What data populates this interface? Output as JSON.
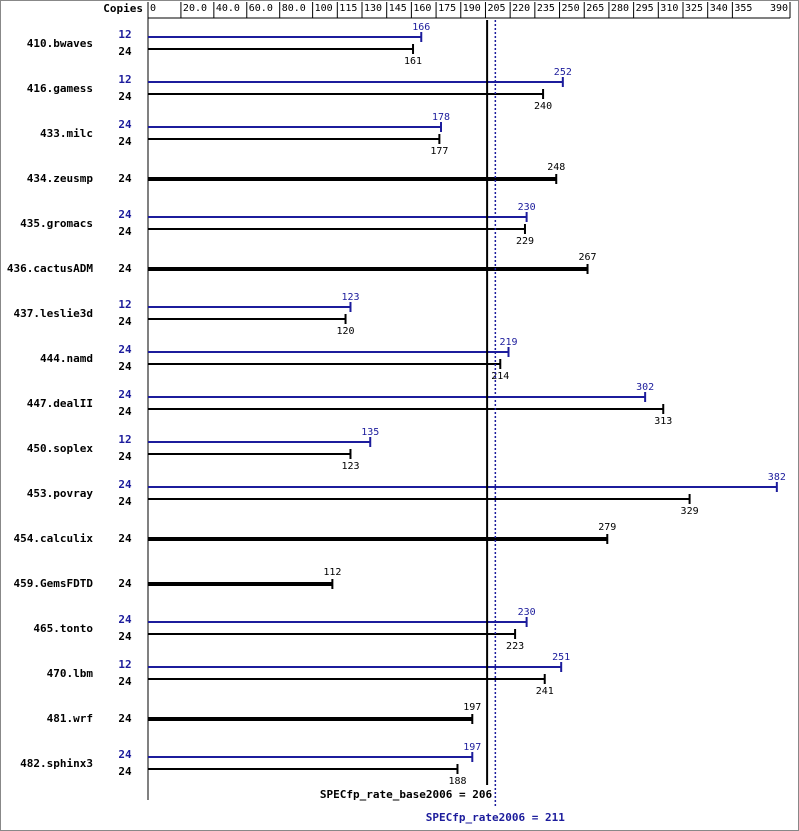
{
  "chart_data": {
    "type": "bar",
    "copies_label": "Copies",
    "categories": [
      "410.bwaves",
      "416.gamess",
      "433.milc",
      "434.zeusmp",
      "435.gromacs",
      "436.cactusADM",
      "437.leslie3d",
      "444.namd",
      "447.dealII",
      "450.soplex",
      "453.povray",
      "454.calculix",
      "459.GemsFDTD",
      "465.tonto",
      "470.lbm",
      "481.wrf",
      "482.sphinx3"
    ],
    "peak_copies": [
      12,
      12,
      24,
      null,
      24,
      null,
      12,
      24,
      24,
      12,
      24,
      null,
      null,
      24,
      12,
      null,
      24
    ],
    "base_copies": [
      24,
      24,
      24,
      24,
      24,
      24,
      24,
      24,
      24,
      24,
      24,
      24,
      24,
      24,
      24,
      24,
      24
    ],
    "series": [
      {
        "color": "#000000",
        "values": [
          161,
          240,
          177,
          248,
          229,
          267,
          120,
          214,
          313,
          123,
          329,
          279,
          112,
          223,
          241,
          197,
          188
        ]
      },
      {
        "color": "#1c1c9c",
        "values": [
          166,
          252,
          178,
          null,
          230,
          null,
          123,
          219,
          302,
          135,
          382,
          null,
          null,
          230,
          251,
          null,
          197
        ]
      }
    ],
    "xlim": [
      0,
      390
    ],
    "xticks": [
      0,
      {
        "value": 20,
        "label": "20.0"
      },
      {
        "value": 40,
        "label": "40.0"
      },
      {
        "value": 60,
        "label": "60.0"
      },
      {
        "value": 80,
        "label": "80.0"
      },
      100,
      115,
      130,
      145,
      160,
      175,
      190,
      205,
      220,
      235,
      250,
      265,
      280,
      295,
      310,
      325,
      340,
      355,
      390
    ],
    "reference_lines": [
      {
        "label": "SPECfp_rate_base2006 = 206",
        "value": 206,
        "color": "#000000",
        "style": "solid"
      },
      {
        "label": "SPECfp_rate2006 = 211",
        "value": 211,
        "color": "#1c1c9c",
        "style": "dotted"
      }
    ]
  }
}
